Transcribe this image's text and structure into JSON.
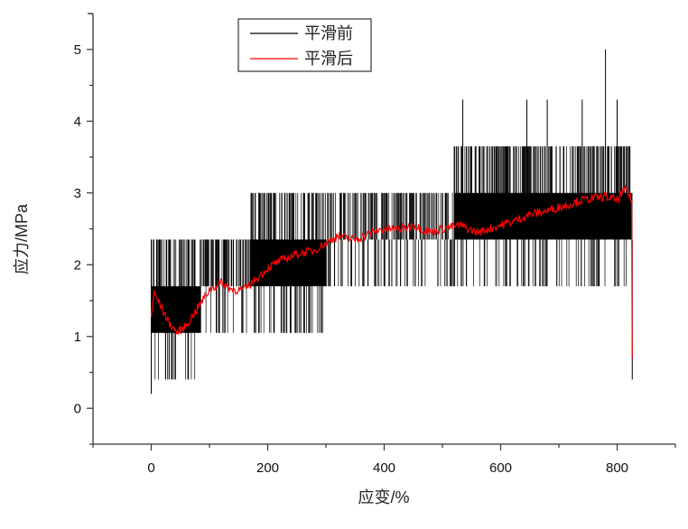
{
  "chart_data": {
    "type": "line",
    "title": "",
    "xlabel": "应变/%",
    "ylabel": "应力/MPa",
    "xlim": [
      -100,
      900
    ],
    "ylim": [
      -0.5,
      5.5
    ],
    "xticks": [
      "0",
      "200",
      "400",
      "600",
      "800"
    ],
    "yticks": [
      "0",
      "1",
      "2",
      "3",
      "4",
      "5"
    ],
    "grid": false,
    "legend": {
      "placement": "top-center",
      "entries": [
        "平滑前",
        "平滑后"
      ]
    },
    "colors": {
      "raw": "#000000",
      "smoothed": "#ff0000",
      "axis": "#333333"
    },
    "series": [
      {
        "name": "平滑前",
        "quantized_levels": [
          0.4,
          1.05,
          1.7,
          2.35,
          3.0,
          3.65,
          4.3,
          5.0
        ],
        "bands": [
          {
            "x": [
              0,
              10
            ],
            "low": 0.4,
            "high": 2.35
          },
          {
            "x": [
              10,
              85
            ],
            "low": 0.4,
            "high": 2.35
          },
          {
            "x": [
              85,
              170
            ],
            "low": 1.05,
            "high": 2.35
          },
          {
            "x": [
              170,
              300
            ],
            "low": 1.05,
            "high": 3.0
          },
          {
            "x": [
              300,
              520
            ],
            "low": 1.7,
            "high": 3.0
          },
          {
            "x": [
              520,
              620
            ],
            "low": 1.7,
            "high": 3.65
          },
          {
            "x": [
              620,
              826
            ],
            "low": 1.7,
            "high": 3.65
          }
        ],
        "spikes": [
          [
            0,
            0.2
          ],
          [
            535,
            4.3
          ],
          [
            645,
            4.3
          ],
          [
            680,
            4.3
          ],
          [
            740,
            4.3
          ],
          [
            780,
            5.0
          ],
          [
            800,
            4.3
          ],
          [
            826,
            0.4
          ]
        ]
      },
      {
        "name": "平滑后",
        "x": [
          0,
          5,
          15,
          30,
          45,
          60,
          80,
          100,
          120,
          140,
          160,
          180,
          200,
          220,
          250,
          280,
          300,
          320,
          350,
          380,
          400,
          430,
          450,
          480,
          500,
          530,
          560,
          580,
          600,
          620,
          650,
          680,
          700,
          740,
          780,
          800,
          815,
          825,
          826
        ],
        "y": [
          1.3,
          1.6,
          1.45,
          1.2,
          1.05,
          1.15,
          1.4,
          1.65,
          1.75,
          1.65,
          1.65,
          1.8,
          1.95,
          2.05,
          2.15,
          2.2,
          2.3,
          2.4,
          2.35,
          2.45,
          2.5,
          2.5,
          2.55,
          2.45,
          2.5,
          2.55,
          2.45,
          2.5,
          2.55,
          2.6,
          2.7,
          2.75,
          2.8,
          2.9,
          2.95,
          2.9,
          3.05,
          2.9,
          0.7
        ]
      }
    ]
  }
}
